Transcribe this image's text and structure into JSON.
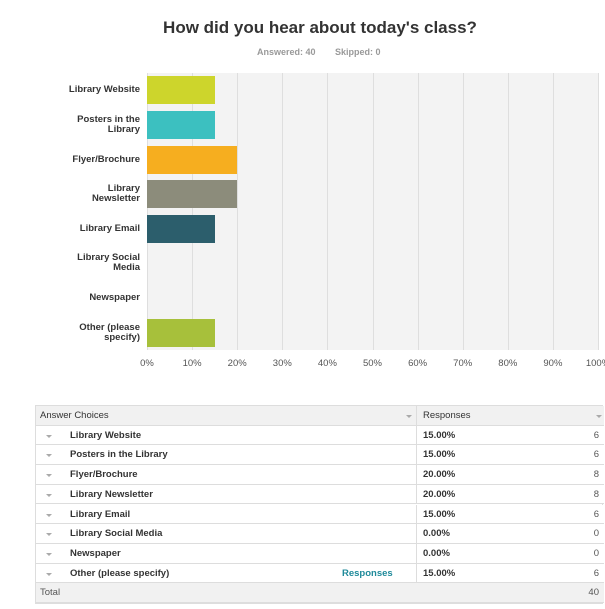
{
  "chart_data": {
    "type": "bar",
    "orientation": "horizontal",
    "title": "How did you hear about today's class?",
    "answered": "Answered: 40",
    "skipped": "Skipped: 0",
    "categories": [
      "Library Website",
      "Posters in the Library",
      "Flyer/Brochure",
      "Library Newsletter",
      "Library Email",
      "Library Social Media",
      "Newspaper",
      "Other (please specify)"
    ],
    "values": [
      15,
      15,
      20,
      20,
      15,
      0,
      0,
      15
    ],
    "colors": [
      "#cdd52c",
      "#3cc0c0",
      "#f6ae1f",
      "#8c8c7b",
      "#2c5e6c",
      null,
      null,
      "#a7c03b"
    ],
    "xlim": [
      0,
      100
    ],
    "xticks": [
      {
        "value": 0,
        "label": "0%"
      },
      {
        "value": 10,
        "label": "10%"
      },
      {
        "value": 20,
        "label": "20%"
      },
      {
        "value": 30,
        "label": "30%"
      },
      {
        "value": 40,
        "label": "40%"
      },
      {
        "value": 50,
        "label": "50%"
      },
      {
        "value": 60,
        "label": "60%"
      },
      {
        "value": 70,
        "label": "70%"
      },
      {
        "value": 80,
        "label": "80%"
      },
      {
        "value": 90,
        "label": "90%"
      },
      {
        "value": 100,
        "label": "100%"
      }
    ],
    "grid": true
  },
  "table": {
    "header": [
      "Answer Choices",
      "Responses"
    ],
    "rows": [
      [
        "Library Website",
        "15.00%",
        6
      ],
      [
        "Posters in the Library",
        "15.00%",
        6
      ],
      [
        "Flyer/Brochure",
        "20.00%",
        8
      ],
      [
        "Library Newsletter",
        "20.00%",
        8
      ],
      [
        "Library Email",
        "15.00%",
        6
      ],
      [
        "Library Social Media",
        "0.00%",
        0
      ],
      [
        "Newspaper",
        "0.00%",
        0
      ],
      [
        "Other (please specify)",
        "15.00%",
        6
      ]
    ],
    "link": "Responses",
    "total": [
      "Total",
      40
    ]
  }
}
